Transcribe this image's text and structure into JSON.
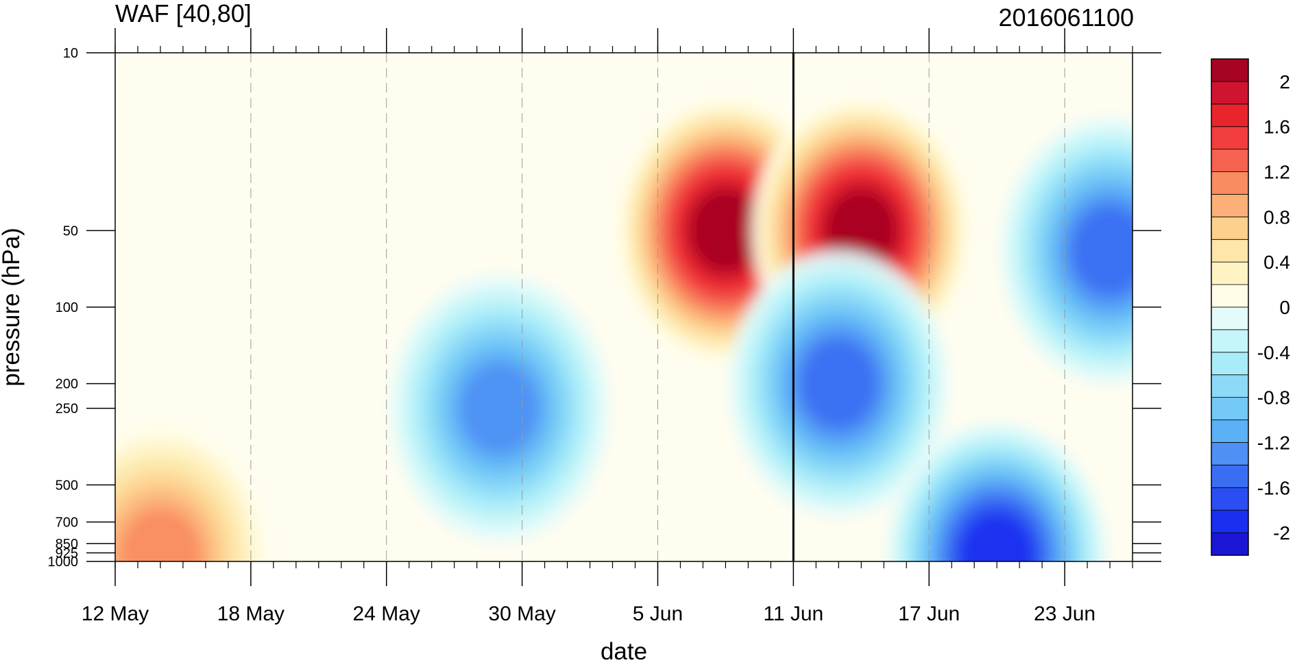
{
  "header": {
    "left_title": "WAF [40,80]",
    "right_title": "2016061100"
  },
  "chart_data": {
    "type": "heatmap",
    "subtype": "filled-contour time-pressure cross section",
    "title_left": "WAF [40,80]",
    "title_right": "2016061100",
    "xlabel": "date",
    "ylabel": "pressure (hPa)",
    "x_axis": {
      "type": "date",
      "range": [
        "2016-05-12",
        "2016-06-26"
      ],
      "ticks": [
        {
          "date": "2016-05-12",
          "label": "12 May"
        },
        {
          "date": "2016-05-18",
          "label": "18 May"
        },
        {
          "date": "2016-05-24",
          "label": "24 May"
        },
        {
          "date": "2016-05-30",
          "label": "30 May"
        },
        {
          "date": "2016-06-05",
          "label": "5 Jun"
        },
        {
          "date": "2016-06-11",
          "label": "11 Jun"
        },
        {
          "date": "2016-06-17",
          "label": "17 Jun"
        },
        {
          "date": "2016-06-23",
          "label": "23 Jun"
        }
      ],
      "minor_tick_interval_days": 1
    },
    "y_axis": {
      "scale": "log",
      "reversed": true,
      "range": [
        1000,
        10
      ],
      "ticks": [
        {
          "value": 10,
          "label": "10"
        },
        {
          "value": 50,
          "label": "50"
        },
        {
          "value": 100,
          "label": "100"
        },
        {
          "value": 200,
          "label": "200"
        },
        {
          "value": 250,
          "label": "250"
        },
        {
          "value": 500,
          "label": "500"
        },
        {
          "value": 700,
          "label": "700"
        },
        {
          "value": 850,
          "label": "850"
        },
        {
          "value": 925,
          "label": "925"
        },
        {
          "value": 1000,
          "label": "1000"
        }
      ]
    },
    "marker_line": {
      "date": "2016-06-11"
    },
    "colorbar": {
      "levels": [
        -2.2,
        -2.0,
        -1.8,
        -1.6,
        -1.4,
        -1.2,
        -1.0,
        -0.8,
        -0.6,
        -0.4,
        -0.2,
        0,
        0.2,
        0.4,
        0.6,
        0.8,
        1.0,
        1.2,
        1.4,
        1.6,
        1.8,
        2.0,
        2.2
      ],
      "labels": [
        {
          "value": 2.0,
          "label": "2"
        },
        {
          "value": 1.6,
          "label": "1.6"
        },
        {
          "value": 1.2,
          "label": "1.2"
        },
        {
          "value": 0.8,
          "label": "0.8"
        },
        {
          "value": 0.4,
          "label": "0.4"
        },
        {
          "value": 0,
          "label": "0"
        },
        {
          "value": -0.4,
          "label": "-0.4"
        },
        {
          "value": -0.8,
          "label": "-0.8"
        },
        {
          "value": -1.2,
          "label": "-1.2"
        },
        {
          "value": -1.6,
          "label": "-1.6"
        },
        {
          "value": -2.0,
          "label": "-2"
        }
      ],
      "colors_low_to_high": [
        "#1a16d6",
        "#1a2ff0",
        "#2a4ef2",
        "#3a6ef2",
        "#4e90f4",
        "#5cb0f5",
        "#74c8f6",
        "#8cdaf7",
        "#a8ecf8",
        "#c6f6f9",
        "#e4fbfa",
        "#fffde8",
        "#fff3c4",
        "#fde6a8",
        "#fdd08e",
        "#fcb078",
        "#f98c60",
        "#f56250",
        "#f23e3e",
        "#e8242c",
        "#cf1430",
        "#a60422"
      ]
    },
    "features": [
      {
        "kind": "max",
        "date": "2016-06-08",
        "pressure_hPa": 50,
        "approx_value": 2.2
      },
      {
        "kind": "max",
        "date": "2016-06-14",
        "pressure_hPa": 50,
        "approx_value": 2.2
      },
      {
        "kind": "min",
        "date": "2016-06-13",
        "pressure_hPa": 200,
        "approx_value": -1.6
      },
      {
        "kind": "min",
        "date": "2016-06-20",
        "pressure_hPa": 950,
        "approx_value": -2.0
      },
      {
        "kind": "min",
        "date": "2016-06-25",
        "pressure_hPa": 60,
        "approx_value": -1.6
      },
      {
        "kind": "min",
        "date": "2016-05-29",
        "pressure_hPa": 250,
        "approx_value": -1.4
      },
      {
        "kind": "max",
        "date": "2016-05-14",
        "pressure_hPa": 950,
        "approx_value": 1.2
      }
    ]
  }
}
